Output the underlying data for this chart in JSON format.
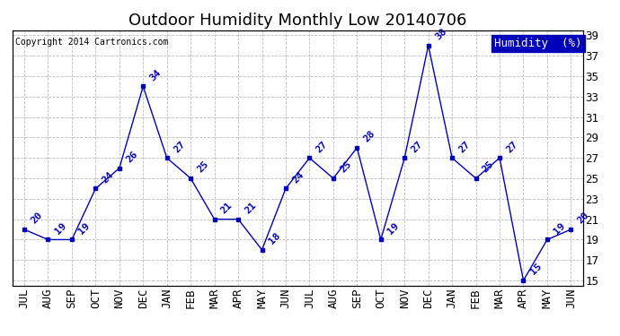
{
  "title": "Outdoor Humidity Monthly Low 20140706",
  "copyright_text": "Copyright 2014 Cartronics.com",
  "legend_label": "Humidity  (%)",
  "months": [
    "JUL",
    "AUG",
    "SEP",
    "OCT",
    "NOV",
    "DEC",
    "JAN",
    "FEB",
    "MAR",
    "APR",
    "MAY",
    "JUN",
    "JUL",
    "AUG",
    "SEP",
    "OCT",
    "NOV",
    "DEC",
    "JAN",
    "FEB",
    "MAR",
    "APR",
    "MAY",
    "JUN"
  ],
  "values": [
    20,
    19,
    19,
    24,
    26,
    34,
    27,
    25,
    21,
    21,
    18,
    24,
    27,
    25,
    28,
    19,
    27,
    38,
    27,
    25,
    27,
    15,
    19,
    20
  ],
  "line_color": "#0000bb",
  "marker_color": "#0000bb",
  "grid_color": "#bbbbbb",
  "bg_color": "#ffffff",
  "title_color": "#000000",
  "copyright_color": "#000000",
  "legend_bg": "#0000bb",
  "legend_text_color": "#ffffff",
  "ylim_min": 14.5,
  "ylim_max": 39.5,
  "yticks_left": [
    15,
    17,
    19,
    21,
    23,
    25,
    27,
    29,
    31,
    33,
    35,
    37,
    39
  ],
  "yticks_right": [
    15,
    17,
    19,
    21,
    23,
    25,
    27,
    29,
    31,
    33,
    35,
    37,
    39
  ],
  "title_fontsize": 13,
  "tick_fontsize": 9,
  "annotation_fontsize": 8,
  "copyright_fontsize": 7,
  "legend_fontsize": 9
}
